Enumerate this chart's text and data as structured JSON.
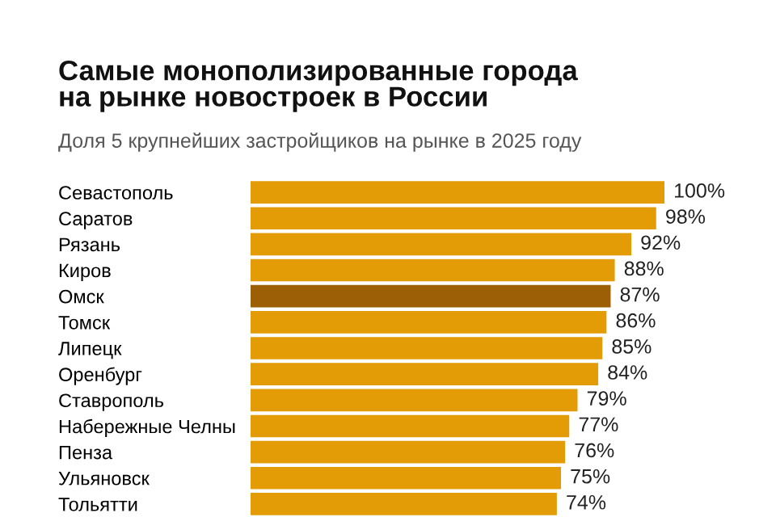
{
  "chart_data": {
    "type": "bar",
    "orientation": "horizontal",
    "title": "Самые монополизированные города\nна рынке новостроек в России",
    "subtitle": "Доля 5 крупнейших застройщиков на рынке в 2025 году",
    "categories": [
      "Севастополь",
      "Саратов",
      "Рязань",
      "Киров",
      "Омск",
      "Томск",
      "Липецк",
      "Оренбург",
      "Ставрополь",
      "Набережные Челны",
      "Пенза",
      "Ульяновск",
      "Тольятти"
    ],
    "values": [
      100,
      98,
      92,
      88,
      87,
      86,
      85,
      84,
      79,
      77,
      76,
      75,
      74
    ],
    "value_labels": [
      "100%",
      "98%",
      "92%",
      "88%",
      "87%",
      "86%",
      "85%",
      "84%",
      "79%",
      "77%",
      "76%",
      "75%",
      "74%"
    ],
    "colors": [
      "#e39b06",
      "#e39b06",
      "#e39b06",
      "#e39b06",
      "#9c5f05",
      "#e39b06",
      "#e39b06",
      "#e39b06",
      "#e39b06",
      "#e39b06",
      "#e39b06",
      "#e39b06",
      "#e39b06"
    ],
    "grid": false,
    "legend": false
  }
}
